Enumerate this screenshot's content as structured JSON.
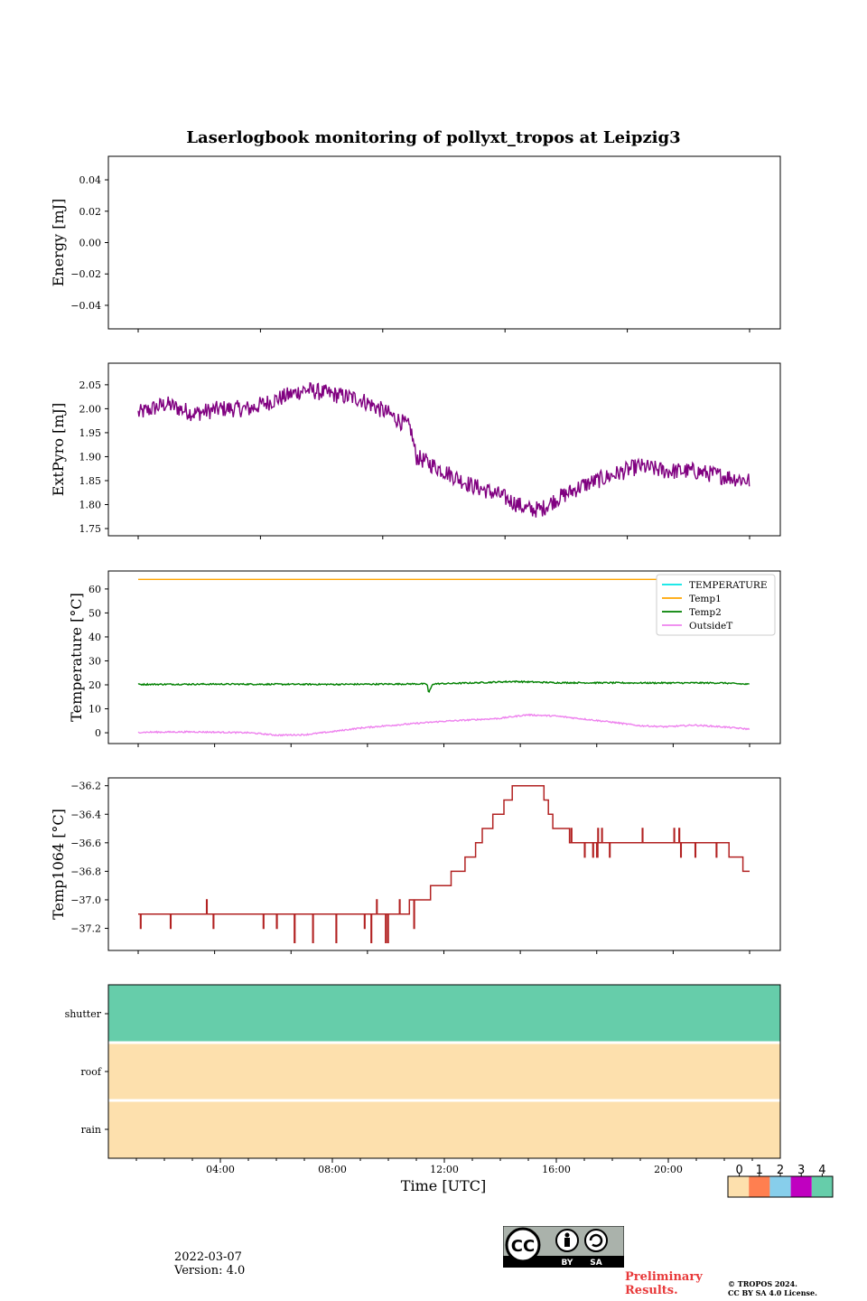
{
  "title": "Laserlogbook monitoring of pollyxt_tropos at Leipzig3",
  "chart_data": [
    {
      "id": "energy",
      "type": "line",
      "ylabel": "Energy [mJ]",
      "ylim": [
        -0.055,
        0.055
      ],
      "yticks": [
        0.04,
        0.02,
        0.0,
        -0.02,
        -0.04
      ],
      "ytick_labels": [
        "0.04",
        "0.02",
        "0.00",
        "−0.02",
        "−0.04"
      ],
      "series": []
    },
    {
      "id": "extpyro",
      "type": "line",
      "ylabel": "ExtPyro [mJ]",
      "ylim": [
        1.735,
        2.095
      ],
      "yticks": [
        2.05,
        2.0,
        1.95,
        1.9,
        1.85,
        1.8,
        1.75
      ],
      "ytick_labels": [
        "2.05",
        "2.00",
        "1.95",
        "1.90",
        "1.85",
        "1.80",
        "1.75"
      ],
      "series": [
        {
          "name": "ExtPyro",
          "color": "#800080",
          "x_hours": [
            1,
            2,
            3,
            4,
            5,
            6,
            7,
            8,
            9,
            10,
            10.8,
            11,
            12,
            13,
            14,
            15,
            15.5,
            16,
            17,
            18,
            19,
            20,
            21,
            22,
            23
          ],
          "values": [
            1.99,
            2.01,
            1.99,
            2.0,
            2.0,
            2.02,
            2.04,
            2.03,
            2.02,
            1.99,
            1.96,
            1.9,
            1.87,
            1.84,
            1.82,
            1.79,
            1.79,
            1.81,
            1.84,
            1.86,
            1.88,
            1.87,
            1.87,
            1.86,
            1.85
          ],
          "noise": 0.018
        }
      ]
    },
    {
      "id": "temperature",
      "type": "line",
      "ylabel": "Temperature [°C]",
      "ylim": [
        -4.5,
        67.5
      ],
      "yticks": [
        60,
        50,
        40,
        30,
        20,
        10,
        0
      ],
      "ytick_labels": [
        "60",
        "50",
        "40",
        "30",
        "20",
        "10",
        "0"
      ],
      "legend": "top-right",
      "series": [
        {
          "name": "TEMPERATURE",
          "color": "#00e5e5",
          "x_hours": [],
          "values": []
        },
        {
          "name": "Temp1",
          "color": "#ffa500",
          "x_hours": [
            1,
            23
          ],
          "values": [
            64,
            64
          ]
        },
        {
          "name": "Temp2",
          "color": "#008000",
          "x_hours": [
            1,
            4,
            8,
            11.2,
            11.4,
            11.45,
            11.6,
            13,
            14.5,
            16,
            19,
            22,
            23
          ],
          "values": [
            20.2,
            20.3,
            20.2,
            20.4,
            20.3,
            16.5,
            20.4,
            20.8,
            21.4,
            20.9,
            20.8,
            20.8,
            20.2
          ],
          "noise": 0.3
        },
        {
          "name": "OutsideT",
          "color": "#ee82ee",
          "x_hours": [
            1,
            3,
            5,
            6,
            7,
            8,
            9,
            10,
            12,
            14,
            15,
            16,
            17,
            18,
            19,
            20,
            21,
            22,
            23
          ],
          "values": [
            0.2,
            0.4,
            0.0,
            -1.0,
            -0.8,
            0.5,
            2.0,
            3.0,
            4.8,
            6.0,
            7.5,
            7.0,
            5.8,
            4.5,
            3.0,
            2.5,
            3.2,
            2.5,
            1.5
          ],
          "noise": 0.3
        }
      ]
    },
    {
      "id": "temp1064",
      "type": "line",
      "ylabel": "Temp1064 [°C]",
      "ylim": [
        -37.355,
        -36.145
      ],
      "yticks": [
        -36.2,
        -36.4,
        -36.6,
        -36.8,
        -37.0,
        -37.2
      ],
      "ytick_labels": [
        "−36.2",
        "−36.4",
        "−36.6",
        "−36.8",
        "−37.0",
        "−37.2"
      ],
      "series": [
        {
          "name": "Temp1064",
          "color": "#b22222",
          "x_hours": [
            1,
            10.5,
            11,
            12,
            12.5,
            13,
            13.5,
            14,
            14.3,
            14.6,
            15.5,
            16,
            17,
            22,
            22.5,
            23
          ],
          "values": [
            -37.1,
            -37.1,
            -37.0,
            -36.9,
            -36.8,
            -36.7,
            -36.5,
            -36.4,
            -36.3,
            -36.2,
            -36.2,
            -36.5,
            -36.6,
            -36.6,
            -36.7,
            -36.8
          ]
        }
      ]
    },
    {
      "id": "status",
      "type": "heatmap",
      "rows": [
        "shutter",
        "roof",
        "rain"
      ],
      "row_values": [
        4,
        0,
        0
      ],
      "colorbar_ticks": [
        "0",
        "1",
        "2",
        "3",
        "4"
      ],
      "colorbar_colors": [
        "#fde0ad",
        "#ff7f50",
        "#87ceeb",
        "#c000c0",
        "#66cdaa"
      ]
    }
  ],
  "x_axis": {
    "xlabel": "Time [UTC]",
    "xlim_hours": [
      0,
      24
    ],
    "tick_hours": [
      4,
      8,
      12,
      16,
      20
    ],
    "tick_labels": [
      "04:00",
      "08:00",
      "12:00",
      "16:00",
      "20:00"
    ]
  },
  "footer": {
    "date": "2022-03-07",
    "version": "Version: 4.0",
    "cc_icons": [
      "CC",
      "BY",
      "SA"
    ],
    "preliminary": [
      "Preliminary",
      "Results."
    ],
    "copyright": [
      "© TROPOS 2024.",
      "CC BY SA 4.0 License."
    ]
  }
}
